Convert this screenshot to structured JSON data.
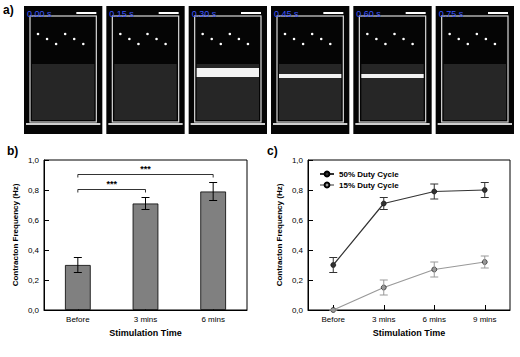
{
  "panel_a": {
    "title": "a)",
    "times": [
      "0.00 s",
      "0.15 s",
      "0.30 s",
      "0.45 s",
      "0.60 s",
      "0.75 s"
    ]
  },
  "chart_data": [
    {
      "type": "bar",
      "title": "b)",
      "x_label": "Stimulation Time",
      "y_label": "Contracton Frequency (Hz)",
      "categories": [
        "Before",
        "3 mins",
        "6 mins"
      ],
      "values": [
        0.3,
        0.71,
        0.79
      ],
      "errors": [
        0.05,
        0.04,
        0.06
      ],
      "color": "#808080",
      "ylim": [
        0,
        1.0
      ],
      "yticks": [
        {
          "value": 0,
          "label": "0,0"
        },
        {
          "value": 0.2,
          "label": "0,2"
        },
        {
          "value": 0.4,
          "label": "0,4"
        },
        {
          "value": 0.6,
          "label": "0,6"
        },
        {
          "value": 0.8,
          "label": "0,8"
        },
        {
          "value": 1.0,
          "label": "1,0"
        }
      ],
      "grid": false,
      "annotations": [
        {
          "from": "Before",
          "to": "3 mins",
          "text": "***"
        },
        {
          "from": "Before",
          "to": "6 mins",
          "text": "***"
        }
      ]
    },
    {
      "type": "line",
      "title": "c)",
      "x_label": "Stimulation Time",
      "y_label": "Contracton Frequency (Hz)",
      "categories": [
        "Before",
        "3 mins",
        "6 mins",
        "9 mins"
      ],
      "series": [
        {
          "name": "50% Duty Cycle",
          "color": "#333333",
          "marker": "circle",
          "values": [
            0.3,
            0.71,
            0.79,
            0.8
          ],
          "errors": [
            0.05,
            0.04,
            0.05,
            0.05
          ]
        },
        {
          "name": "15% Duty Cycle",
          "color": "#999999",
          "marker": "circle",
          "values": [
            0.0,
            0.15,
            0.27,
            0.32
          ],
          "errors": [
            0.0,
            0.05,
            0.05,
            0.04
          ]
        }
      ],
      "ylim": [
        0,
        1.0
      ],
      "yticks": [
        {
          "value": 0,
          "label": "0,0"
        },
        {
          "value": 0.2,
          "label": "0,2"
        },
        {
          "value": 0.4,
          "label": "0,4"
        },
        {
          "value": 0.6,
          "label": "0,6"
        },
        {
          "value": 0.8,
          "label": "0,8"
        },
        {
          "value": 1.0,
          "label": "1,0"
        }
      ],
      "grid": false,
      "legend": "upper left"
    }
  ]
}
